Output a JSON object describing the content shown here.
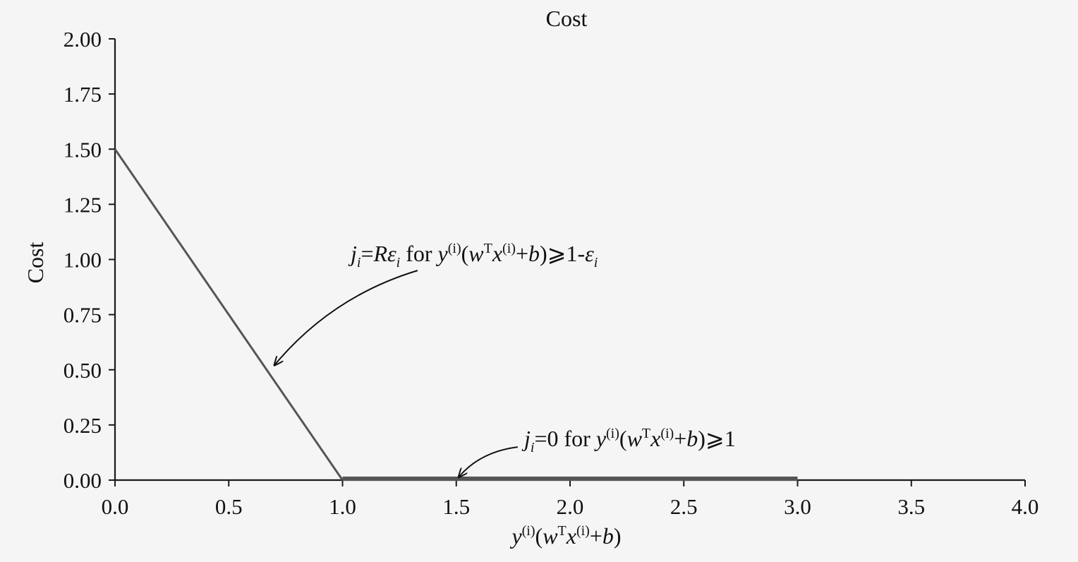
{
  "chart_data": {
    "type": "line",
    "title": "Cost",
    "ylabel": "Cost",
    "xlabel": {
      "parts": [
        {
          "text": "y",
          "style": "italic"
        },
        {
          "text": "(i)",
          "style": "sup"
        },
        {
          "text": "(",
          "style": "normal"
        },
        {
          "text": "w",
          "style": "italic"
        },
        {
          "text": "T",
          "style": "sup"
        },
        {
          "text": "x",
          "style": "italic"
        },
        {
          "text": "(i)",
          "style": "sup"
        },
        {
          "text": "+",
          "style": "normal"
        },
        {
          "text": "b",
          "style": "italic"
        },
        {
          "text": ")",
          "style": "normal"
        }
      ]
    },
    "xlim": [
      0.0,
      4.0
    ],
    "ylim": [
      0.0,
      2.0
    ],
    "x_ticks": [
      0.0,
      0.5,
      1.0,
      1.5,
      2.0,
      2.5,
      3.0,
      3.5,
      4.0
    ],
    "x_tick_labels": [
      "0.0",
      "0.5",
      "1.0",
      "1.5",
      "2.0",
      "2.5",
      "3.0",
      "3.5",
      "4.0"
    ],
    "y_ticks": [
      0.0,
      0.25,
      0.5,
      0.75,
      1.0,
      1.25,
      1.5,
      1.75,
      2.0
    ],
    "y_tick_labels": [
      "0.00",
      "0.25",
      "0.50",
      "0.75",
      "1.00",
      "1.25",
      "1.50",
      "1.75",
      "2.00"
    ],
    "grid": false,
    "line_color": "#555555",
    "series": [
      {
        "segments": [
          {
            "x": [
              0.0,
              1.0
            ],
            "y": [
              1.5,
              0.0
            ],
            "width": "thin"
          },
          {
            "x": [
              1.0,
              3.0
            ],
            "y": [
              0.0,
              0.0
            ],
            "width": "thick"
          }
        ]
      }
    ],
    "annotations": [
      {
        "target": {
          "x": 0.7,
          "y": 0.52
        },
        "from": {
          "x": 1.33,
          "y": 0.95
        },
        "parts": [
          {
            "text": "j",
            "style": "italic"
          },
          {
            "text": "i",
            "style": "sub-italic"
          },
          {
            "text": "=",
            "style": "normal"
          },
          {
            "text": "Rε",
            "style": "italic"
          },
          {
            "text": "i",
            "style": "sub-italic"
          },
          {
            "text": " for ",
            "style": "normal"
          },
          {
            "text": "y",
            "style": "italic"
          },
          {
            "text": "(i)",
            "style": "sup"
          },
          {
            "text": "(",
            "style": "normal"
          },
          {
            "text": "w",
            "style": "italic"
          },
          {
            "text": "T",
            "style": "sup"
          },
          {
            "text": "x",
            "style": "italic"
          },
          {
            "text": "(i)",
            "style": "sup"
          },
          {
            "text": "+",
            "style": "normal"
          },
          {
            "text": "b",
            "style": "italic"
          },
          {
            "text": ")⩾1-",
            "style": "normal"
          },
          {
            "text": "ε",
            "style": "italic"
          },
          {
            "text": "i",
            "style": "sub-italic"
          }
        ]
      },
      {
        "target": {
          "x": 1.51,
          "y": 0.0
        },
        "from": {
          "x": 1.77,
          "y": 0.15
        },
        "parts": [
          {
            "text": "j",
            "style": "italic"
          },
          {
            "text": "i",
            "style": "sub-italic"
          },
          {
            "text": "=0 for ",
            "style": "normal"
          },
          {
            "text": "y",
            "style": "italic"
          },
          {
            "text": "(i)",
            "style": "sup"
          },
          {
            "text": "(",
            "style": "normal"
          },
          {
            "text": "w",
            "style": "italic"
          },
          {
            "text": "T",
            "style": "sup"
          },
          {
            "text": "x",
            "style": "italic"
          },
          {
            "text": "(i)",
            "style": "sup"
          },
          {
            "text": "+",
            "style": "normal"
          },
          {
            "text": "b",
            "style": "italic"
          },
          {
            "text": ")⩾1",
            "style": "normal"
          }
        ]
      }
    ]
  }
}
